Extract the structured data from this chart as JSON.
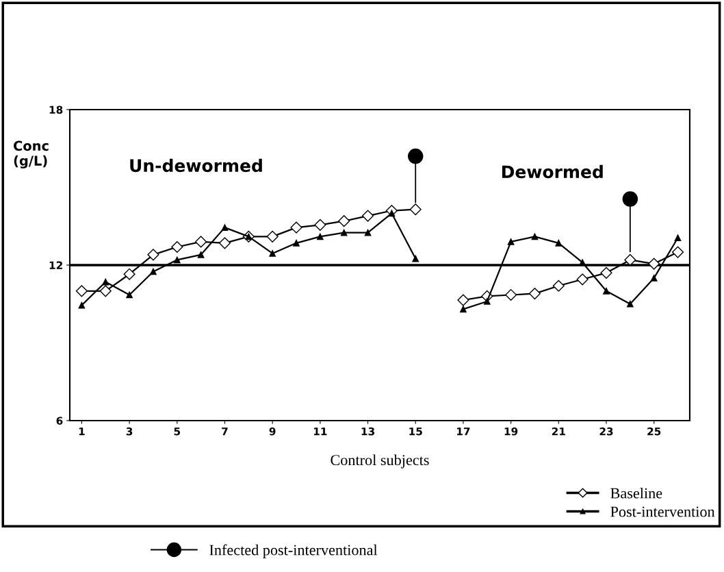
{
  "chart_data": {
    "type": "line",
    "xlabel": "Control subjects",
    "ylabel": "Conc\n(g/L)",
    "x": [
      1,
      2,
      3,
      4,
      5,
      6,
      7,
      8,
      9,
      10,
      11,
      12,
      13,
      14,
      15,
      16,
      17,
      18,
      19,
      20,
      21,
      22,
      23,
      24,
      25,
      26
    ],
    "xlim": [
      0.5,
      26.5
    ],
    "xticks": [
      1,
      3,
      5,
      7,
      9,
      11,
      13,
      15,
      17,
      19,
      21,
      23,
      25
    ],
    "ylim": [
      6,
      18
    ],
    "yticks": [
      6,
      12,
      18
    ],
    "series": [
      {
        "name": "Baseline",
        "color": "#000000",
        "marker": "diamond",
        "values": [
          11.0,
          11.0,
          11.65,
          12.4,
          12.7,
          12.9,
          12.85,
          13.1,
          13.1,
          13.45,
          13.55,
          13.7,
          13.9,
          14.1,
          14.15,
          null,
          10.65,
          10.8,
          10.85,
          10.9,
          11.2,
          11.45,
          11.7,
          12.2,
          12.05,
          12.5
        ]
      },
      {
        "name": "Post-intervention",
        "color": "#000000",
        "marker": "triangle",
        "values": [
          10.45,
          11.35,
          10.85,
          11.75,
          12.2,
          12.4,
          13.45,
          13.1,
          12.45,
          12.85,
          13.1,
          13.25,
          13.25,
          14.0,
          12.25,
          null,
          10.3,
          10.6,
          12.9,
          13.1,
          12.85,
          12.1,
          11.0,
          10.5,
          11.5,
          13.05
        ]
      },
      {
        "name": "Infected post-interventional",
        "type": "scatter",
        "color": "#000000",
        "marker": "circle",
        "errors": [
          null,
          null,
          null,
          null,
          null,
          null,
          null,
          null,
          null,
          null,
          null,
          null,
          null,
          null,
          [
            14.4,
            16.2
          ],
          null,
          null,
          null,
          null,
          null,
          null,
          null,
          null,
          [
            12.5,
            14.55
          ],
          null,
          null
        ],
        "values": [
          null,
          null,
          null,
          null,
          null,
          null,
          null,
          null,
          null,
          null,
          null,
          null,
          null,
          null,
          16.2,
          null,
          null,
          null,
          null,
          null,
          null,
          null,
          null,
          14.55,
          null,
          null
        ]
      }
    ],
    "ref_lines": [
      {
        "axis": "y",
        "value": 12,
        "color": "#000000"
      }
    ],
    "annotations": [
      "Un-dewormed",
      "Dewormed"
    ],
    "legend": "bottom right",
    "grid": false
  }
}
